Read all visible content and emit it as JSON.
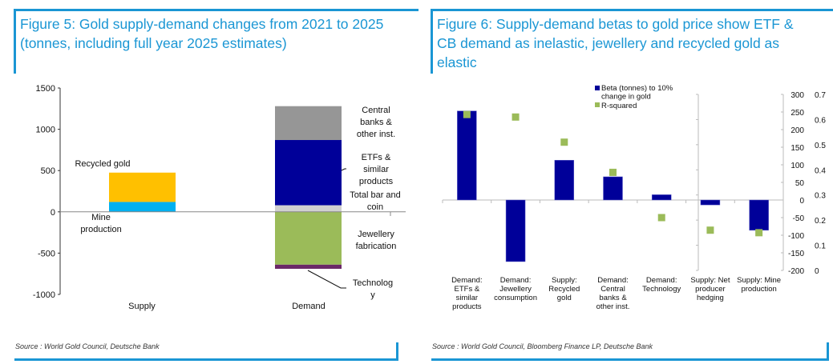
{
  "chart_data": [
    {
      "type": "bar",
      "stacked": true,
      "title": "Figure 5: Gold supply-demand changes from 2021 to 2025 (tonnes, including full year 2025 estimates)",
      "title_lines": [
        "Figure 5: Gold supply-demand changes from 2021 to 2025",
        "(tonnes, including full year 2025 estimates)"
      ],
      "xlabel": "",
      "ylabel": "",
      "ylim": [
        -1000,
        1500
      ],
      "yticks": [
        1500,
        1000,
        500,
        0,
        -500,
        -1000
      ],
      "ytick_labels": [
        "1500",
        "1000",
        "500",
        "0",
        "-500",
        "-1000"
      ],
      "categories": [
        "Supply",
        "Demand"
      ],
      "segments": [
        {
          "category": "Supply",
          "name": "Mine production",
          "label_lines": [
            "Mine",
            "production"
          ],
          "from": 0,
          "to": 120,
          "color": "#00b0f0"
        },
        {
          "category": "Supply",
          "name": "Recycled gold",
          "label_lines": [
            "Recycled gold"
          ],
          "from": 120,
          "to": 475,
          "color": "#ffc000"
        },
        {
          "category": "Demand",
          "name": "Total bar and coin",
          "label_lines": [
            "Total bar and",
            "coin"
          ],
          "from": 0,
          "to": 80,
          "color": "#d0d0d0"
        },
        {
          "category": "Demand",
          "name": "ETFs & similar products",
          "label_lines": [
            "ETFs &",
            "similar",
            "products"
          ],
          "from": 80,
          "to": 870,
          "color": "#000099"
        },
        {
          "category": "Demand",
          "name": "Central banks & other inst.",
          "label_lines": [
            "Central",
            "banks &",
            "other inst."
          ],
          "from": 870,
          "to": 1280,
          "color": "#969696"
        },
        {
          "category": "Demand",
          "name": "Jewellery fabrication",
          "label_lines": [
            "Jewellery",
            "fabrication"
          ],
          "from": 0,
          "to": -640,
          "color": "#9bbb59"
        },
        {
          "category": "Demand",
          "name": "Technology",
          "label_lines": [
            "Technolog",
            "y"
          ],
          "from": -640,
          "to": -690,
          "color": "#6b2868"
        }
      ],
      "grid": false,
      "source": "Source : World Gold Council, Deutsche Bank"
    },
    {
      "type": "bar",
      "title": "Figure 6: Supply-demand betas to gold price show ETF & CB demand as inelastic, jewellery and recycled gold as elastic",
      "title_lines": [
        "Figure 6: Supply-demand betas to gold price show ETF &",
        "CB demand as inelastic, jewellery and recycled gold as",
        "elastic"
      ],
      "categories": [
        [
          "Demand:",
          "ETFs &",
          "similar",
          "products"
        ],
        [
          "Demand:",
          "Jewellery",
          "consumption"
        ],
        [
          "Supply:",
          "Recycled",
          "gold"
        ],
        [
          "Demand:",
          "Central",
          "banks &",
          "other inst."
        ],
        [
          "Demand:",
          "Technology"
        ],
        [
          "Supply: Net",
          "producer",
          "hedging"
        ],
        [
          "Supply: Mine",
          "production"
        ]
      ],
      "series": [
        {
          "name": "Beta (tonnes) to 10% change in gold",
          "legend_lines": [
            "Beta (tonnes) to 10%",
            "change in gold"
          ],
          "type": "bar",
          "axis": "left-scale",
          "color": "#000099",
          "values": [
            253,
            -175,
            113,
            66,
            15,
            -14,
            -86
          ]
        },
        {
          "name": "R-squared",
          "legend_lines": [
            "R-squared"
          ],
          "type": "scatter",
          "axis": "right-scale",
          "color": "#9bbb59",
          "values": [
            0.62,
            0.61,
            0.51,
            0.39,
            0.21,
            0.16,
            0.15
          ]
        }
      ],
      "y1lim": [
        -200,
        300
      ],
      "y1ticks": [
        300,
        250,
        200,
        150,
        100,
        50,
        0,
        -50,
        -100,
        -150,
        -200
      ],
      "y1tick_labels": [
        "300",
        "250",
        "200",
        "150",
        "100",
        "50",
        "0",
        "-50",
        "-100",
        "-150",
        "-200"
      ],
      "y2lim": [
        0,
        0.7
      ],
      "y2ticks": [
        0.7,
        0.6,
        0.5,
        0.4,
        0.3,
        0.2,
        0.1,
        0
      ],
      "y2tick_labels": [
        "0.7",
        "0.6",
        "0.5",
        "0.4",
        "0.3",
        "0.2",
        "0.1",
        "0"
      ],
      "legend": "top-right",
      "grid": false,
      "source": "Source : World Gold Council, Bloomberg Finance LP, Deutsche Bank"
    }
  ]
}
